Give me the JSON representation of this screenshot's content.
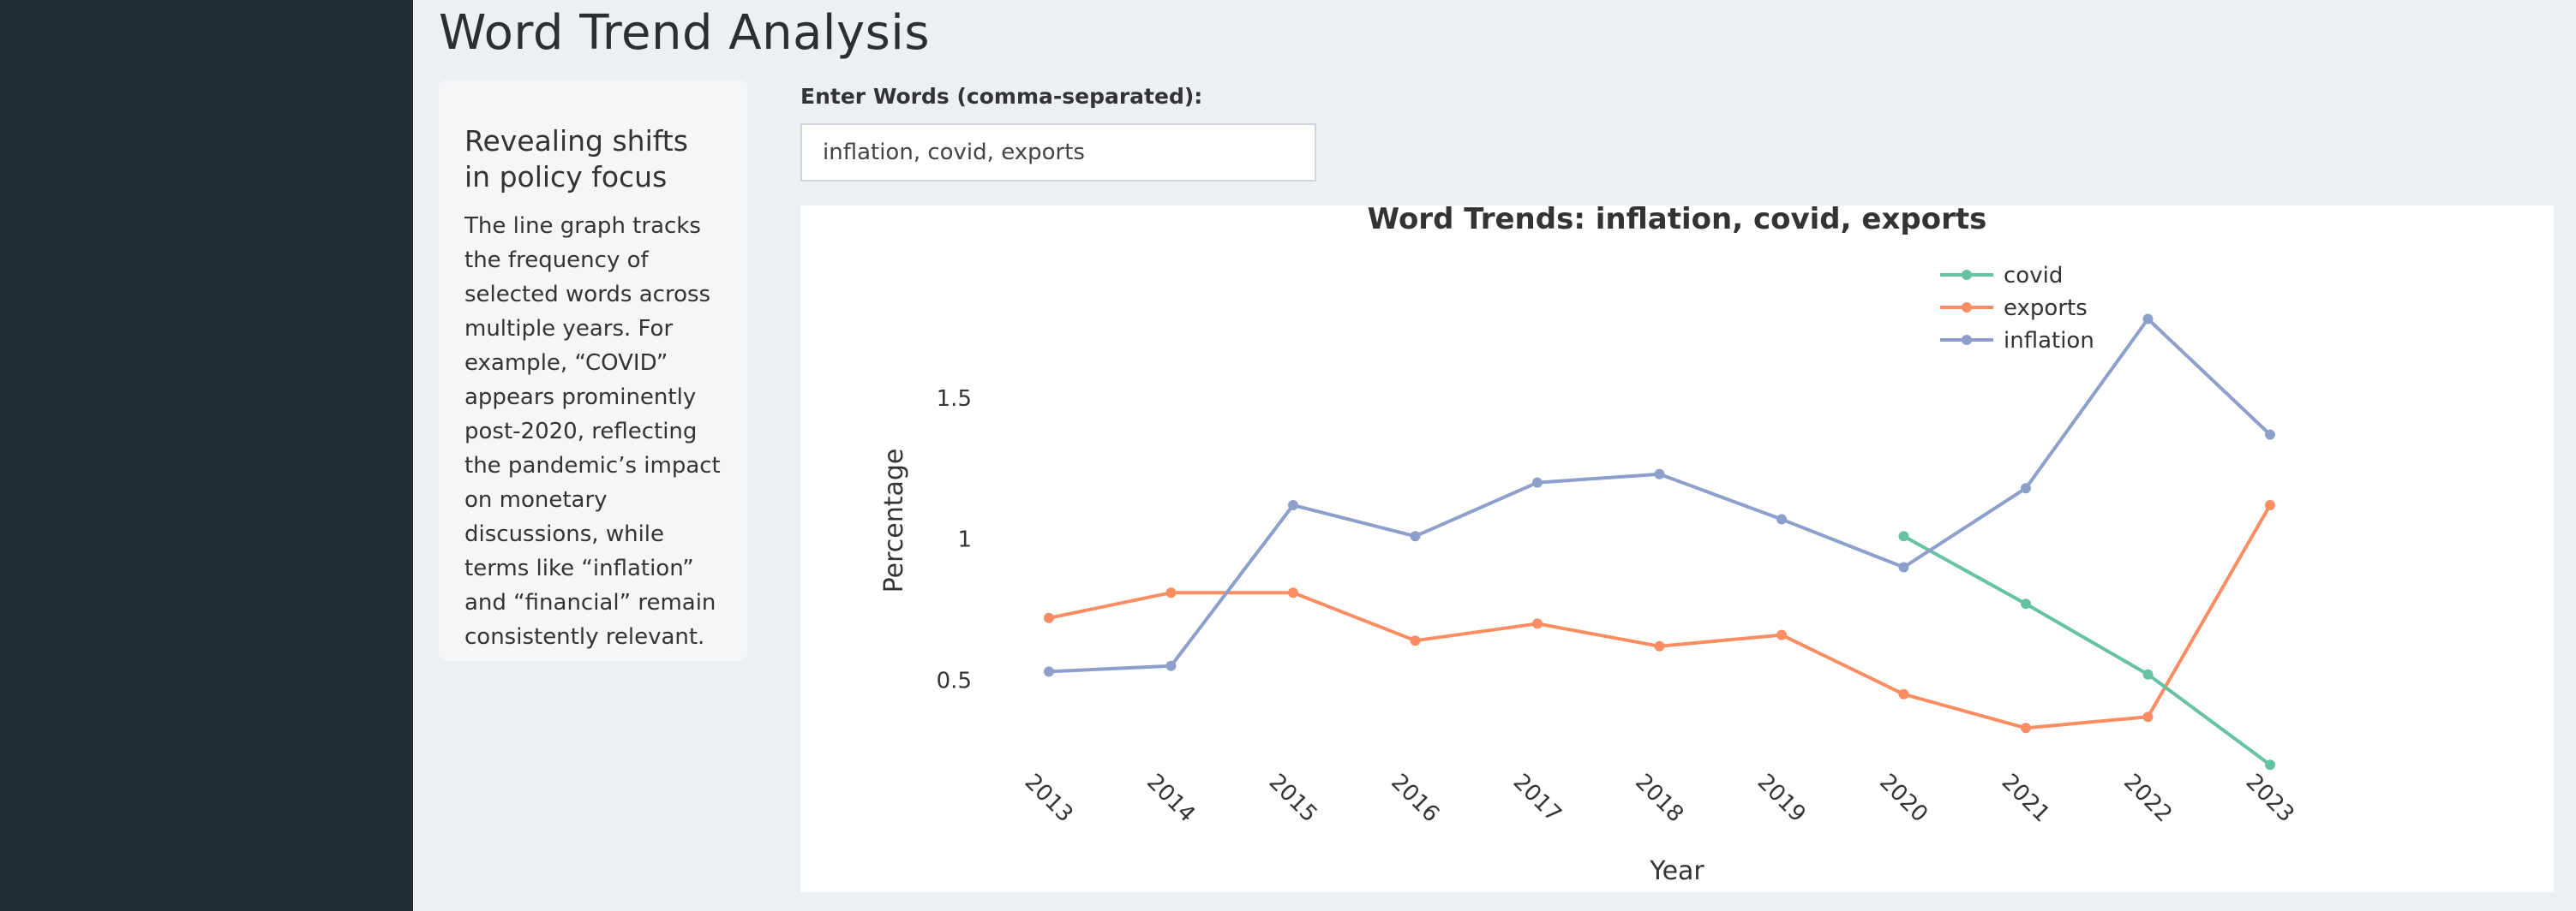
{
  "page": {
    "title": "Word Trend Analysis"
  },
  "info_card": {
    "heading": "Revealing shifts in policy focus",
    "text": "The line graph tracks the frequency of selected words across multiple years. For example, “COVID” appears prominently post-2020, reflecting the pandemic’s impact on monetary discussions, while terms like “inflation” and “financial” remain consistently relevant."
  },
  "words_input": {
    "label": "Enter Words (comma-separated):",
    "value": "inflation, covid, exports"
  },
  "colors": {
    "sidebar": "#222d32",
    "page_background": "#ecf0f5",
    "covid": "#66c2a5",
    "exports": "#fc8d62",
    "inflation": "#8da0cb"
  },
  "chart_data": {
    "type": "line",
    "title": "Word Trends: inflation, covid, exports",
    "xlabel": "Year",
    "ylabel": "Percentage",
    "x": [
      "2013",
      "2014",
      "2015",
      "2016",
      "2017",
      "2018",
      "2019",
      "2020",
      "2021",
      "2022",
      "2023"
    ],
    "xlim": [
      "2013",
      "2023"
    ],
    "ylim": [
      0.24,
      2.0
    ],
    "y_ticks": [
      {
        "value": 0.5,
        "label": "0.5"
      },
      {
        "value": 1.0,
        "label": "1"
      },
      {
        "value": 1.5,
        "label": "1.5"
      }
    ],
    "grid": false,
    "legend_position": "top-right",
    "series": [
      {
        "name": "covid",
        "color": "#66c2a5",
        "values": [
          null,
          null,
          null,
          null,
          null,
          null,
          null,
          1.01,
          0.77,
          0.52,
          0.2
        ]
      },
      {
        "name": "exports",
        "color": "#fc8d62",
        "values": [
          0.72,
          0.81,
          0.81,
          0.64,
          0.7,
          0.62,
          0.66,
          0.45,
          0.33,
          0.37,
          1.12
        ]
      },
      {
        "name": "inflation",
        "color": "#8da0cb",
        "values": [
          0.53,
          0.55,
          1.12,
          1.01,
          1.2,
          1.23,
          1.07,
          0.9,
          1.18,
          1.78,
          1.37
        ]
      }
    ]
  }
}
